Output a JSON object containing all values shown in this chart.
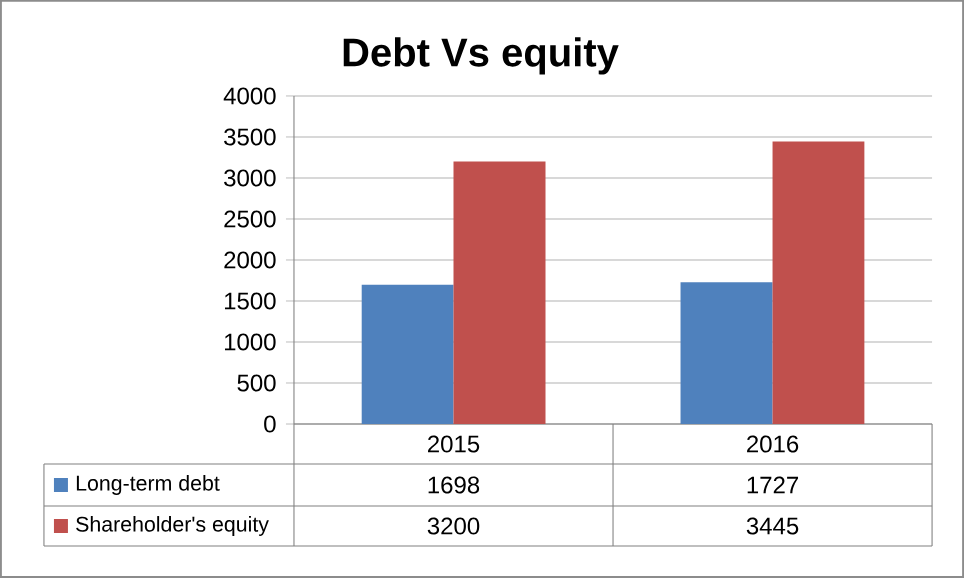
{
  "chart_data": {
    "type": "bar",
    "title": "Debt Vs equity",
    "categories": [
      "2015",
      "2016"
    ],
    "series": [
      {
        "name": "Long-term debt",
        "color": "#4f81bd",
        "values": [
          1698,
          1727
        ]
      },
      {
        "name": "Shareholder's equity",
        "color": "#c0504d",
        "values": [
          3200,
          3445
        ]
      }
    ],
    "ylim": [
      0,
      4000
    ],
    "yticks": [
      0,
      500,
      1000,
      1500,
      2000,
      2500,
      3000,
      3500,
      4000
    ],
    "grid": "y",
    "legend": "bottom",
    "data_labels": true
  }
}
